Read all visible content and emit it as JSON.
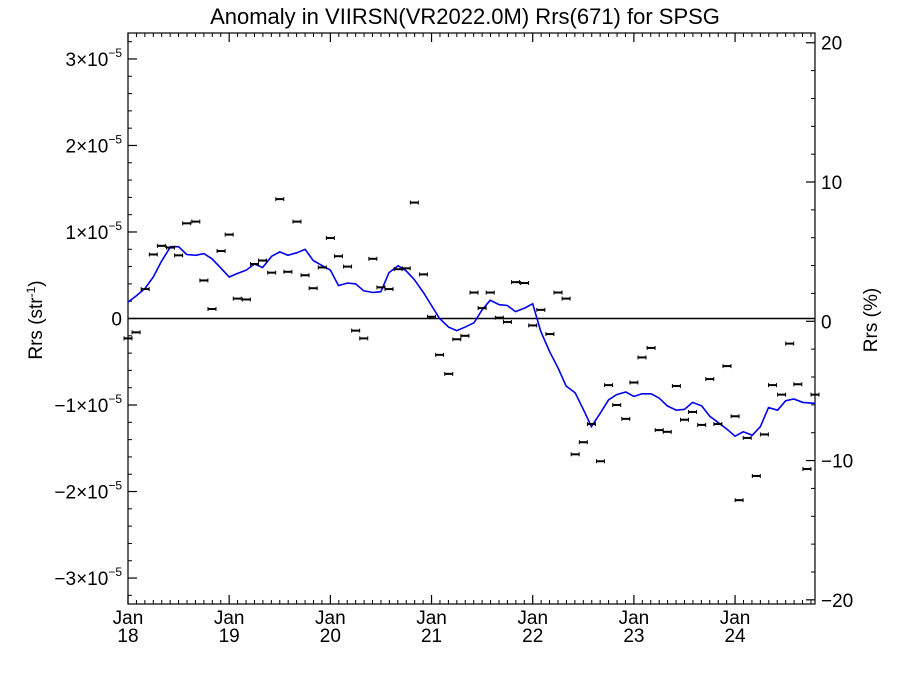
{
  "chart_data": {
    "type": "scatter",
    "title": "Anomaly in VIIRSN(VR2022.0M) Rrs(671) for SPSG",
    "ylabel_main": "Rrs (str",
    "ylabel_sup": "-1",
    "ylabel_close": ")",
    "y2label": "Rrs (%)",
    "ylim": [
      -3.3e-05,
      3.3e-05
    ],
    "y2lim": [
      -20.3,
      20.7
    ],
    "xlim": [
      2018.0,
      2024.79
    ],
    "grid": false,
    "y_ticks": [
      {
        "value": 3e-05,
        "mant": "3×10",
        "exp": "−5"
      },
      {
        "value": 2e-05,
        "mant": "2×10",
        "exp": "−5"
      },
      {
        "value": 1e-05,
        "mant": "1×10",
        "exp": "−5"
      },
      {
        "value": 0,
        "mant": "0",
        "exp": ""
      },
      {
        "value": -1e-05,
        "mant": "−1×10",
        "exp": "−5"
      },
      {
        "value": -2e-05,
        "mant": "−2×10",
        "exp": "−5"
      },
      {
        "value": -3e-05,
        "mant": "−3×10",
        "exp": "−5"
      }
    ],
    "y2_ticks": [
      {
        "value": 20,
        "label": "20"
      },
      {
        "value": 10,
        "label": "10"
      },
      {
        "value": 0,
        "label": "0"
      },
      {
        "value": -10,
        "label": "−10"
      },
      {
        "value": -20,
        "label": "−20"
      }
    ],
    "x_ticks": [
      {
        "value": 2018,
        "month": "Jan",
        "year": "18"
      },
      {
        "value": 2019,
        "month": "Jan",
        "year": "19"
      },
      {
        "value": 2020,
        "month": "Jan",
        "year": "20"
      },
      {
        "value": 2021,
        "month": "Jan",
        "year": "21"
      },
      {
        "value": 2022,
        "month": "Jan",
        "year": "22"
      },
      {
        "value": 2023,
        "month": "Jan",
        "year": "23"
      },
      {
        "value": 2024,
        "month": "Jan",
        "year": "24"
      }
    ],
    "colors": {
      "line": "#0000ee",
      "points": "#000000",
      "zero_line": "#000000"
    },
    "series": [
      {
        "type": "scatter",
        "points": [
          [
            2018.0,
            -2.3e-06
          ],
          [
            2018.08,
            -1.6e-06
          ],
          [
            2018.17,
            3.4e-06
          ],
          [
            2018.25,
            7.4e-06
          ],
          [
            2018.33,
            8.4e-06
          ],
          [
            2018.42,
            8.2e-06
          ],
          [
            2018.5,
            7.3e-06
          ],
          [
            2018.58,
            1.1e-05
          ],
          [
            2018.67,
            1.12e-05
          ],
          [
            2018.75,
            4.4e-06
          ],
          [
            2018.83,
            1.1e-06
          ],
          [
            2018.92,
            7.8e-06
          ],
          [
            2019.0,
            9.7e-06
          ],
          [
            2019.08,
            2.3e-06
          ],
          [
            2019.17,
            2.2e-06
          ],
          [
            2019.25,
            6.3e-06
          ],
          [
            2019.33,
            6.7e-06
          ],
          [
            2019.42,
            5.3e-06
          ],
          [
            2019.5,
            1.38e-05
          ],
          [
            2019.58,
            5.4e-06
          ],
          [
            2019.67,
            1.12e-05
          ],
          [
            2019.75,
            5e-06
          ],
          [
            2019.83,
            3.5e-06
          ],
          [
            2019.92,
            5.9e-06
          ],
          [
            2020.0,
            9.3e-06
          ],
          [
            2020.08,
            7.2e-06
          ],
          [
            2020.17,
            6e-06
          ],
          [
            2020.25,
            -1.4e-06
          ],
          [
            2020.33,
            -2.3e-06
          ],
          [
            2020.42,
            6.9e-06
          ],
          [
            2020.5,
            3.6e-06
          ],
          [
            2020.58,
            3.4e-06
          ],
          [
            2020.67,
            5.7e-06
          ],
          [
            2020.75,
            5.8e-06
          ],
          [
            2020.83,
            1.34e-05
          ],
          [
            2020.92,
            5.1e-06
          ],
          [
            2021.0,
            2e-07
          ],
          [
            2021.08,
            -4.2e-06
          ],
          [
            2021.17,
            -6.4e-06
          ],
          [
            2021.25,
            -2.4e-06
          ],
          [
            2021.33,
            -2e-06
          ],
          [
            2021.42,
            3e-06
          ],
          [
            2021.5,
            1.2e-06
          ],
          [
            2021.58,
            3e-06
          ],
          [
            2021.67,
            1e-07
          ],
          [
            2021.75,
            -4e-07
          ],
          [
            2021.83,
            4.2e-06
          ],
          [
            2021.92,
            4.1e-06
          ],
          [
            2022.0,
            -8e-07
          ],
          [
            2022.08,
            1e-06
          ],
          [
            2022.17,
            -1.8e-06
          ],
          [
            2022.25,
            3e-06
          ],
          [
            2022.33,
            2.3e-06
          ],
          [
            2022.42,
            -1.57e-05
          ],
          [
            2022.5,
            -1.43e-05
          ],
          [
            2022.58,
            -1.22e-05
          ],
          [
            2022.67,
            -1.65e-05
          ],
          [
            2022.75,
            -7.7e-06
          ],
          [
            2022.83,
            -1e-05
          ],
          [
            2022.92,
            -1.16e-05
          ],
          [
            2023.0,
            -7.4e-06
          ],
          [
            2023.08,
            -4.5e-06
          ],
          [
            2023.17,
            -3.4e-06
          ],
          [
            2023.25,
            -1.29e-05
          ],
          [
            2023.33,
            -1.31e-05
          ],
          [
            2023.42,
            -7.8e-06
          ],
          [
            2023.5,
            -1.17e-05
          ],
          [
            2023.58,
            -1.08e-05
          ],
          [
            2023.67,
            -1.23e-05
          ],
          [
            2023.75,
            -7e-06
          ],
          [
            2023.83,
            -1.22e-05
          ],
          [
            2023.92,
            -5.5e-06
          ],
          [
            2024.0,
            -1.13e-05
          ],
          [
            2024.04,
            -2.1e-05
          ],
          [
            2024.12,
            -1.38e-05
          ],
          [
            2024.21,
            -1.82e-05
          ],
          [
            2024.29,
            -1.34e-05
          ],
          [
            2024.37,
            -7.7e-06
          ],
          [
            2024.46,
            -8.8e-06
          ],
          [
            2024.54,
            -2.9e-06
          ],
          [
            2024.62,
            -7.6e-06
          ],
          [
            2024.71,
            -1.74e-05
          ],
          [
            2024.79,
            -8.8e-06
          ]
        ]
      },
      {
        "type": "line",
        "points": [
          [
            2018.0,
            1.9e-06
          ],
          [
            2018.08,
            2.6e-06
          ],
          [
            2018.17,
            3.5e-06
          ],
          [
            2018.25,
            4.8e-06
          ],
          [
            2018.33,
            6.6e-06
          ],
          [
            2018.42,
            8.3e-06
          ],
          [
            2018.5,
            8.3e-06
          ],
          [
            2018.58,
            7.4e-06
          ],
          [
            2018.67,
            7.3e-06
          ],
          [
            2018.75,
            7.5e-06
          ],
          [
            2018.83,
            6.9e-06
          ],
          [
            2018.92,
            5.8e-06
          ],
          [
            2019.0,
            4.8e-06
          ],
          [
            2019.08,
            5.2e-06
          ],
          [
            2019.17,
            5.6e-06
          ],
          [
            2019.25,
            6.3e-06
          ],
          [
            2019.33,
            5.9e-06
          ],
          [
            2019.42,
            7.2e-06
          ],
          [
            2019.5,
            7.7e-06
          ],
          [
            2019.58,
            7.3e-06
          ],
          [
            2019.67,
            7.6e-06
          ],
          [
            2019.75,
            8e-06
          ],
          [
            2019.83,
            6.7e-06
          ],
          [
            2019.92,
            6.1e-06
          ],
          [
            2020.0,
            5.6e-06
          ],
          [
            2020.08,
            3.8e-06
          ],
          [
            2020.17,
            4.1e-06
          ],
          [
            2020.25,
            4e-06
          ],
          [
            2020.33,
            3.2e-06
          ],
          [
            2020.42,
            3e-06
          ],
          [
            2020.5,
            3.1e-06
          ],
          [
            2020.58,
            5.3e-06
          ],
          [
            2020.67,
            6.1e-06
          ],
          [
            2020.75,
            5.5e-06
          ],
          [
            2020.83,
            4.5e-06
          ],
          [
            2020.92,
            3e-06
          ],
          [
            2021.0,
            1.5e-06
          ],
          [
            2021.08,
            0
          ],
          [
            2021.17,
            -1e-06
          ],
          [
            2021.25,
            -1.4e-06
          ],
          [
            2021.33,
            -1e-06
          ],
          [
            2021.42,
            -5e-07
          ],
          [
            2021.5,
            1e-06
          ],
          [
            2021.58,
            2.1e-06
          ],
          [
            2021.67,
            1.6e-06
          ],
          [
            2021.75,
            1.5e-06
          ],
          [
            2021.83,
            8e-07
          ],
          [
            2021.92,
            1.2e-06
          ],
          [
            2022.0,
            1.7e-06
          ],
          [
            2022.08,
            -1.5e-06
          ],
          [
            2022.17,
            -3.9e-06
          ],
          [
            2022.25,
            -5.7e-06
          ],
          [
            2022.33,
            -7.8e-06
          ],
          [
            2022.42,
            -8.6e-06
          ],
          [
            2022.5,
            -1.05e-05
          ],
          [
            2022.58,
            -1.25e-05
          ],
          [
            2022.67,
            -1.09e-05
          ],
          [
            2022.75,
            -9.4e-06
          ],
          [
            2022.83,
            -8.8e-06
          ],
          [
            2022.92,
            -8.5e-06
          ],
          [
            2023.0,
            -9e-06
          ],
          [
            2023.08,
            -8.7e-06
          ],
          [
            2023.17,
            -8.7e-06
          ],
          [
            2023.25,
            -9.2e-06
          ],
          [
            2023.33,
            -1.01e-05
          ],
          [
            2023.42,
            -1.06e-05
          ],
          [
            2023.5,
            -1.05e-05
          ],
          [
            2023.58,
            -9.7e-06
          ],
          [
            2023.67,
            -1.01e-05
          ],
          [
            2023.75,
            -1.13e-05
          ],
          [
            2023.83,
            -1.2e-05
          ],
          [
            2023.92,
            -1.28e-05
          ],
          [
            2024.0,
            -1.36e-05
          ],
          [
            2024.08,
            -1.31e-05
          ],
          [
            2024.17,
            -1.35e-05
          ],
          [
            2024.25,
            -1.25e-05
          ],
          [
            2024.33,
            -1.03e-05
          ],
          [
            2024.42,
            -1.06e-05
          ],
          [
            2024.5,
            -9.5e-06
          ],
          [
            2024.58,
            -9.3e-06
          ],
          [
            2024.67,
            -9.7e-06
          ],
          [
            2024.79,
            -9.8e-06
          ]
        ]
      }
    ]
  }
}
